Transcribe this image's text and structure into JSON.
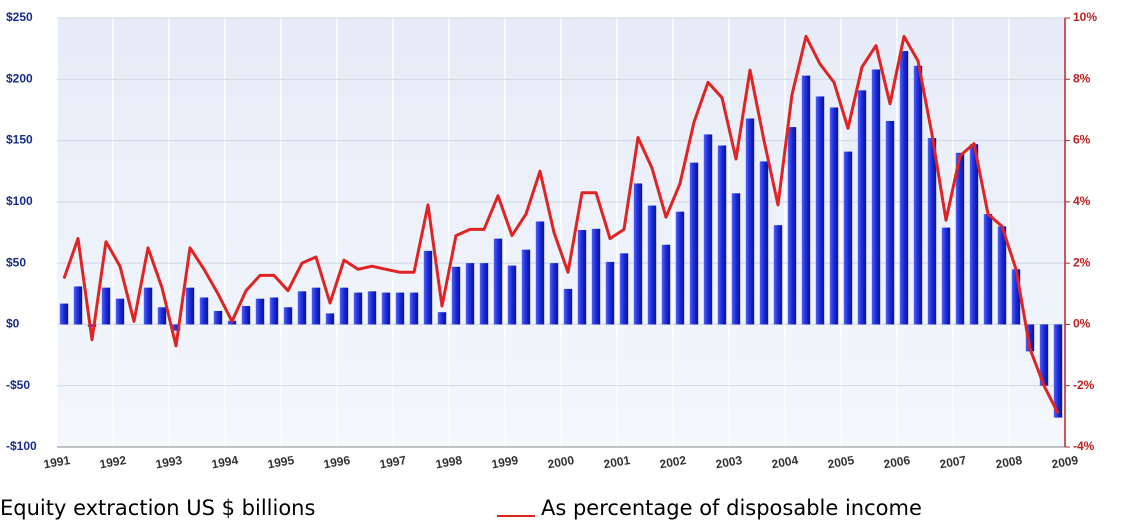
{
  "chart_data": {
    "type": "bar_line",
    "x": [
      1991.125,
      1991.375,
      1991.625,
      1991.875,
      1992.125,
      1992.375,
      1992.625,
      1992.875,
      1993.125,
      1993.375,
      1993.625,
      1993.875,
      1994.125,
      1994.375,
      1994.625,
      1994.875,
      1995.125,
      1995.375,
      1995.625,
      1995.875,
      1996.125,
      1996.375,
      1996.625,
      1996.875,
      1997.125,
      1997.375,
      1997.625,
      1997.875,
      1998.125,
      1998.375,
      1998.625,
      1998.875,
      1999.125,
      1999.375,
      1999.625,
      1999.875,
      2000.125,
      2000.375,
      2000.625,
      2000.875,
      2001.125,
      2001.375,
      2001.625,
      2001.875,
      2002.125,
      2002.375,
      2002.625,
      2002.875,
      2003.125,
      2003.375,
      2003.625,
      2003.875,
      2004.125,
      2004.375,
      2004.625,
      2004.875,
      2005.125,
      2005.375,
      2005.625,
      2005.875,
      2006.125,
      2006.375,
      2006.625,
      2006.875,
      2007.125,
      2007.375,
      2007.625,
      2007.875,
      2008.125,
      2008.375,
      2008.625,
      2008.875
    ],
    "xlim": [
      1991,
      2009
    ],
    "xticks": [
      1991,
      1992,
      1993,
      1994,
      1995,
      1996,
      1997,
      1998,
      1999,
      2000,
      2001,
      2002,
      2003,
      2004,
      2005,
      2006,
      2007,
      2008,
      2009
    ],
    "ylim": [
      -100,
      250
    ],
    "yticks": [
      {
        "value": -100,
        "label": "-$100"
      },
      {
        "value": -50,
        "label": "-$50"
      },
      {
        "value": 0,
        "label": "$0"
      },
      {
        "value": 50,
        "label": "$50"
      },
      {
        "value": 100,
        "label": "$100"
      },
      {
        "value": 150,
        "label": "$150"
      },
      {
        "value": 200,
        "label": "$200"
      },
      {
        "value": 250,
        "label": "$250"
      }
    ],
    "y2lim": [
      -4,
      10
    ],
    "y2ticks": [
      {
        "value": -4,
        "label": "-4%"
      },
      {
        "value": -2,
        "label": "-2%"
      },
      {
        "value": 0,
        "label": "0%"
      },
      {
        "value": 2,
        "label": "2%"
      },
      {
        "value": 4,
        "label": "4%"
      },
      {
        "value": 6,
        "label": "6%"
      },
      {
        "value": 8,
        "label": "8%"
      },
      {
        "value": 10,
        "label": "10%"
      }
    ],
    "grid": true,
    "series": [
      {
        "name": "Equity extraction US $ billions",
        "type": "bar",
        "color": "#1a2bd6",
        "values": [
          17,
          31,
          -2,
          30,
          21,
          0,
          30,
          14,
          -5,
          30,
          22,
          11,
          3,
          15,
          21,
          22,
          14,
          27,
          30,
          9,
          30,
          26,
          27,
          26,
          26,
          26,
          60,
          10,
          47,
          50,
          50,
          70,
          48,
          61,
          84,
          50,
          29,
          77,
          78,
          51,
          58,
          115,
          97,
          65,
          92,
          132,
          155,
          146,
          107,
          168,
          133,
          81,
          161,
          203,
          186,
          177,
          141,
          191,
          208,
          166,
          223,
          211,
          152,
          79,
          140,
          147,
          90,
          80,
          45,
          -22,
          -50,
          -76
        ]
      },
      {
        "name": "As percentage of disposable income",
        "type": "line",
        "axis": "y2",
        "color": "#e02424",
        "values": [
          1.5,
          2.8,
          -0.5,
          2.7,
          1.9,
          0.1,
          2.5,
          1.2,
          -0.7,
          2.5,
          1.8,
          1.0,
          0.1,
          1.1,
          1.6,
          1.6,
          1.1,
          2.0,
          2.2,
          0.7,
          2.1,
          1.8,
          1.9,
          1.8,
          1.7,
          1.7,
          3.9,
          0.6,
          2.9,
          3.1,
          3.1,
          4.2,
          2.9,
          3.6,
          5.0,
          3.0,
          1.7,
          4.3,
          4.3,
          2.8,
          3.1,
          6.1,
          5.1,
          3.5,
          4.6,
          6.6,
          7.9,
          7.4,
          5.4,
          8.3,
          6.0,
          3.9,
          7.5,
          9.4,
          8.5,
          7.9,
          6.4,
          8.4,
          9.1,
          7.2,
          9.4,
          8.6,
          6.2,
          3.4,
          5.5,
          5.9,
          3.6,
          3.2,
          1.8,
          -0.8,
          -2.0,
          -2.9
        ]
      }
    ]
  }
}
